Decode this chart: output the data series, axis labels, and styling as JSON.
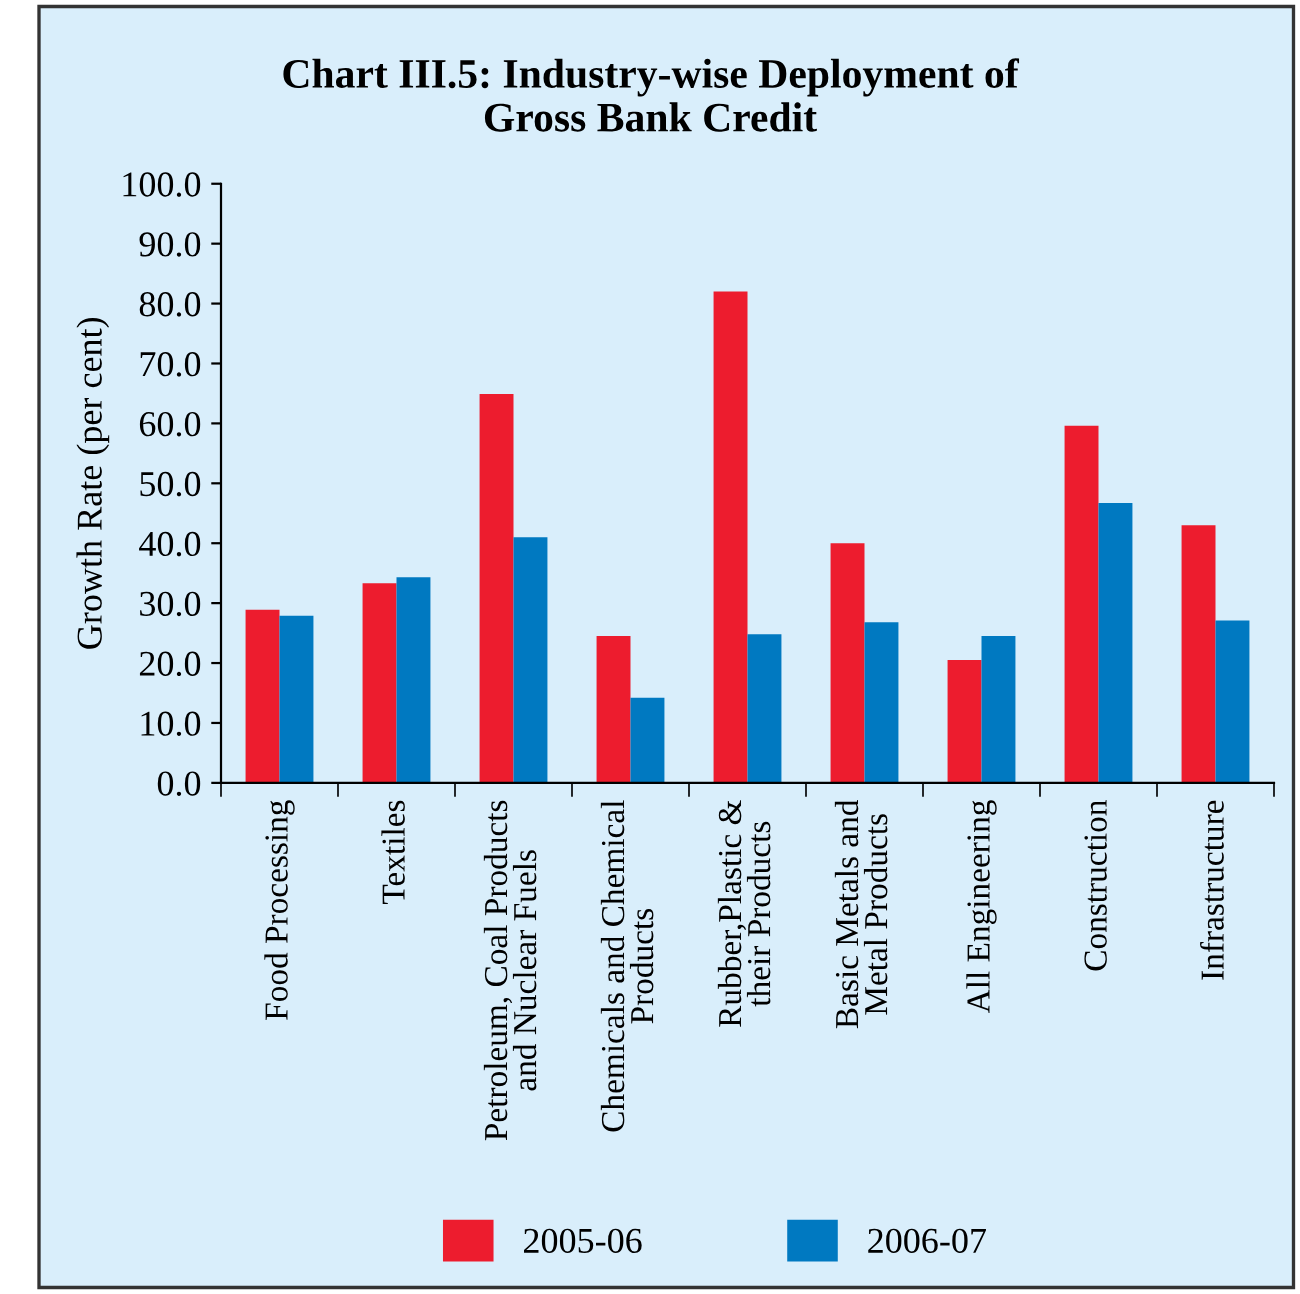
{
  "chart_data": {
    "type": "bar",
    "title": "Chart III.5: Industry-wise Deployment of\nGross Bank Credit",
    "ylabel": "Growth Rate (per cent)",
    "categories": [
      "Food Processing",
      "Textiles",
      "Petroleum, Coal Products\nand Nuclear Fuels",
      "Chemicals and Chemical\nProducts",
      "Rubber,Plastic &\ntheir Products",
      "Basic Metals and\nMetal Products",
      "All Engineering",
      "Construction",
      "Infrastructure"
    ],
    "series": [
      {
        "name": "2005-06",
        "color": "#ed1c2e",
        "values": [
          28.9,
          33.3,
          64.9,
          24.5,
          82.0,
          40.0,
          20.5,
          59.6,
          43.0
        ]
      },
      {
        "name": "2006-07",
        "color": "#0079c1",
        "values": [
          27.9,
          34.3,
          41.0,
          14.2,
          24.8,
          26.8,
          24.5,
          46.7,
          27.1
        ]
      }
    ],
    "ylim": [
      0,
      100
    ],
    "yticks": [
      {
        "value": 0,
        "label": "0.0"
      },
      {
        "value": 10,
        "label": "10.0"
      },
      {
        "value": 20,
        "label": "20.0"
      },
      {
        "value": 30,
        "label": "30.0"
      },
      {
        "value": 40,
        "label": "40.0"
      },
      {
        "value": 50,
        "label": "50.0"
      },
      {
        "value": 60,
        "label": "60.0"
      },
      {
        "value": 70,
        "label": "70.0"
      },
      {
        "value": 80,
        "label": "80.0"
      },
      {
        "value": 90,
        "label": "90.0"
      },
      {
        "value": 100,
        "label": "100.0"
      }
    ],
    "grid": false,
    "legend": "bottom"
  }
}
